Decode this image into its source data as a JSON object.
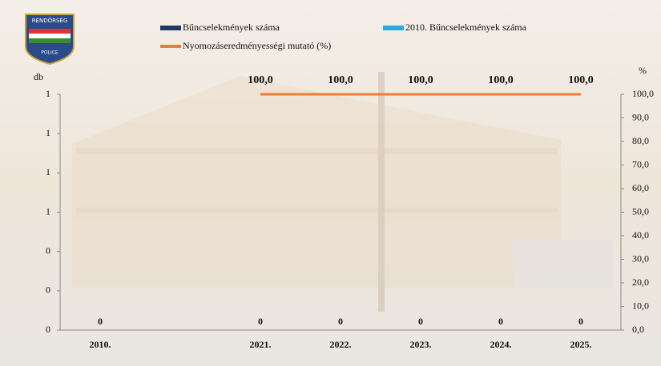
{
  "logo": {
    "top_text": "RENDŐRSÉG",
    "bottom_text": "POLICE"
  },
  "chart_data": {
    "type": "bar",
    "categories": [
      "2010.",
      null,
      "2021.",
      "2022.",
      "2023.",
      "2024.",
      "2025."
    ],
    "y_axis_label": "db",
    "y2_axis_label": "%",
    "ylim": [
      0,
      1.2
    ],
    "yticks": [
      {
        "value": 0,
        "label": "0"
      },
      {
        "value": 0.2,
        "label": "0"
      },
      {
        "value": 0.4,
        "label": "0"
      },
      {
        "value": 0.6,
        "label": "1"
      },
      {
        "value": 0.8,
        "label": "1"
      },
      {
        "value": 1.0,
        "label": "1"
      },
      {
        "value": 1.2,
        "label": "1"
      }
    ],
    "y2lim": [
      0,
      100
    ],
    "y2ticks": [
      {
        "value": 0,
        "label": "0,0"
      },
      {
        "value": 10,
        "label": "10,0"
      },
      {
        "value": 20,
        "label": "20,0"
      },
      {
        "value": 30,
        "label": "30,0"
      },
      {
        "value": 40,
        "label": "40,0"
      },
      {
        "value": 50,
        "label": "50,0"
      },
      {
        "value": 60,
        "label": "60,0"
      },
      {
        "value": 70,
        "label": "70,0"
      },
      {
        "value": 80,
        "label": "80,0"
      },
      {
        "value": 90,
        "label": "90,0"
      },
      {
        "value": 100,
        "label": "100,0"
      }
    ],
    "series": [
      {
        "name": "Bűncselekmények száma",
        "type": "bar",
        "color": "#1f3864",
        "values": [
          null,
          null,
          0,
          0,
          0,
          0,
          0
        ]
      },
      {
        "name": "2010. Bűncselekmények száma",
        "type": "bar",
        "color": "#29abe2",
        "values": [
          0,
          null,
          null,
          null,
          null,
          null,
          null
        ]
      },
      {
        "name": "Nyomozáseredményességi mutató (%)",
        "type": "line",
        "axis": "y2",
        "color": "#ed7d31",
        "values": [
          null,
          null,
          100,
          100,
          100,
          100,
          100
        ],
        "value_labels": [
          null,
          null,
          "100,0",
          "100,0",
          "100,0",
          "100,0",
          "100,0"
        ]
      }
    ]
  }
}
